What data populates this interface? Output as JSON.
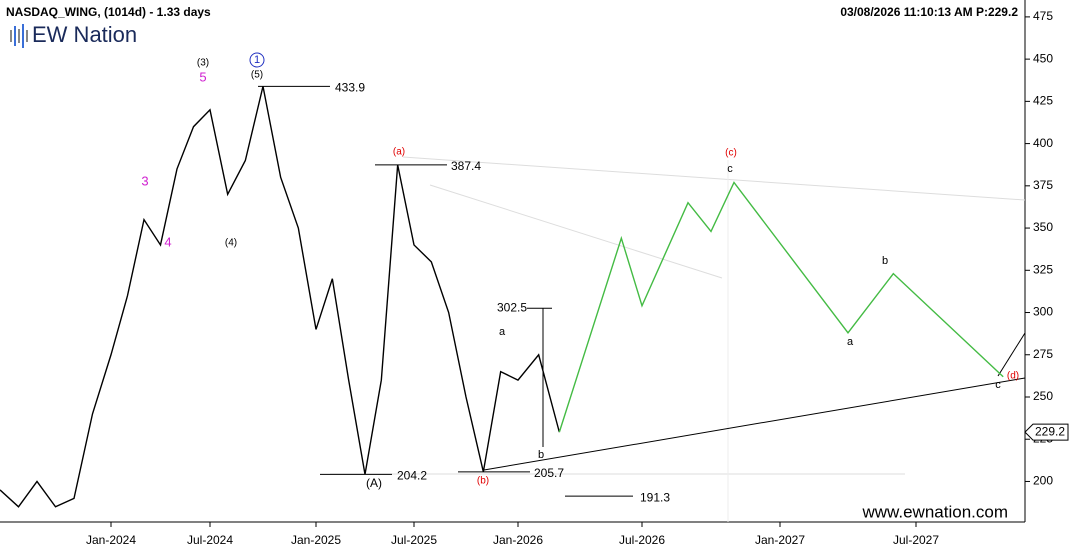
{
  "chart_data": {
    "type": "line",
    "title": "NASDAQ_WING, (1014d) - 1.33 days",
    "timestamp": "03/08/2026 11:10:13 AM  P:229.2",
    "logo": "EW Nation",
    "watermark": "www.ewnation.com",
    "price_tag": 229.2,
    "xlim": [
      "2023-07",
      "2027-12"
    ],
    "xticks": [
      {
        "value": "2024-01",
        "label": "Jan-2024"
      },
      {
        "value": "2024-07",
        "label": "Jul-2024"
      },
      {
        "value": "2025-01",
        "label": "Jan-2025"
      },
      {
        "value": "2025-07",
        "label": "Jul-2025"
      },
      {
        "value": "2026-01",
        "label": "Jan-2026"
      },
      {
        "value": "2026-07",
        "label": "Jul-2026"
      },
      {
        "value": "2027-01",
        "label": "Jan-2027"
      },
      {
        "value": "2027-07",
        "label": "Jul-2027"
      }
    ],
    "ylim": [
      176,
      485
    ],
    "yticks": [
      200,
      225,
      250,
      275,
      300,
      325,
      350,
      375,
      400,
      425,
      450,
      475
    ],
    "series": [
      {
        "color": "#000000",
        "x": [
          "2023-07",
          "2023-08",
          "2023-09",
          "2023-10",
          "2023-11",
          "2023-12",
          "2024-01",
          "2024-02",
          "2024-03",
          "2024-04",
          "2024-05",
          "2024-06",
          "2024-07",
          "2024-08",
          "2024-09",
          "2024-10",
          "2024-11",
          "2024-12",
          "2025-01",
          "2025-02",
          "2025-03",
          "2025-04",
          "2025-05",
          "2025-06",
          "2025-07",
          "2025-08",
          "2025-09",
          "2025-10",
          "2025-11",
          "2025-12",
          "2026-01",
          "2026-02",
          "2026-03"
        ],
        "values": [
          195,
          185,
          200,
          185,
          190,
          240,
          275,
          310,
          355,
          340,
          385,
          410,
          420,
          370,
          390,
          433.9,
          380,
          350,
          290,
          320,
          260,
          204.2,
          260,
          387.4,
          340,
          330,
          300,
          250,
          205.7,
          265,
          260,
          275,
          229.2
        ]
      },
      {
        "color": "#44bb44",
        "x": [
          "2026-03",
          "2026-06",
          "2026-07",
          "2026-09",
          "2026-10",
          "2026-11",
          "2027-04",
          "2027-06",
          "2027-11"
        ],
        "values": [
          229.2,
          344,
          304,
          365,
          348,
          377,
          288,
          323,
          262
        ]
      }
    ],
    "levels": [
      433.9,
      387.4,
      302.5,
      204.2,
      205.7,
      191.3
    ],
    "annotations": [
      {
        "text": "(3)",
        "color": "#000000"
      },
      {
        "text": "5",
        "color": "#d020d0"
      },
      {
        "text": "1",
        "color": "#2030c0"
      },
      {
        "text": "(5)",
        "color": "#000000"
      },
      {
        "text": "3",
        "color": "#d020d0"
      },
      {
        "text": "4",
        "color": "#d020d0"
      },
      {
        "text": "(4)",
        "color": "#000000"
      },
      {
        "text": "(a)",
        "color": "#e00000"
      },
      {
        "text": "(A)",
        "color": "#000000"
      },
      {
        "text": "(b)",
        "color": "#e00000"
      },
      {
        "text": "a",
        "color": "#000000"
      },
      {
        "text": "b",
        "color": "#000000"
      },
      {
        "text": "(c)",
        "color": "#e00000"
      },
      {
        "text": "c",
        "color": "#000000"
      },
      {
        "text": "a",
        "color": "#000000"
      },
      {
        "text": "b",
        "color": "#000000"
      },
      {
        "text": "c",
        "color": "#000000"
      },
      {
        "text": "(d)",
        "color": "#e00000"
      }
    ]
  }
}
